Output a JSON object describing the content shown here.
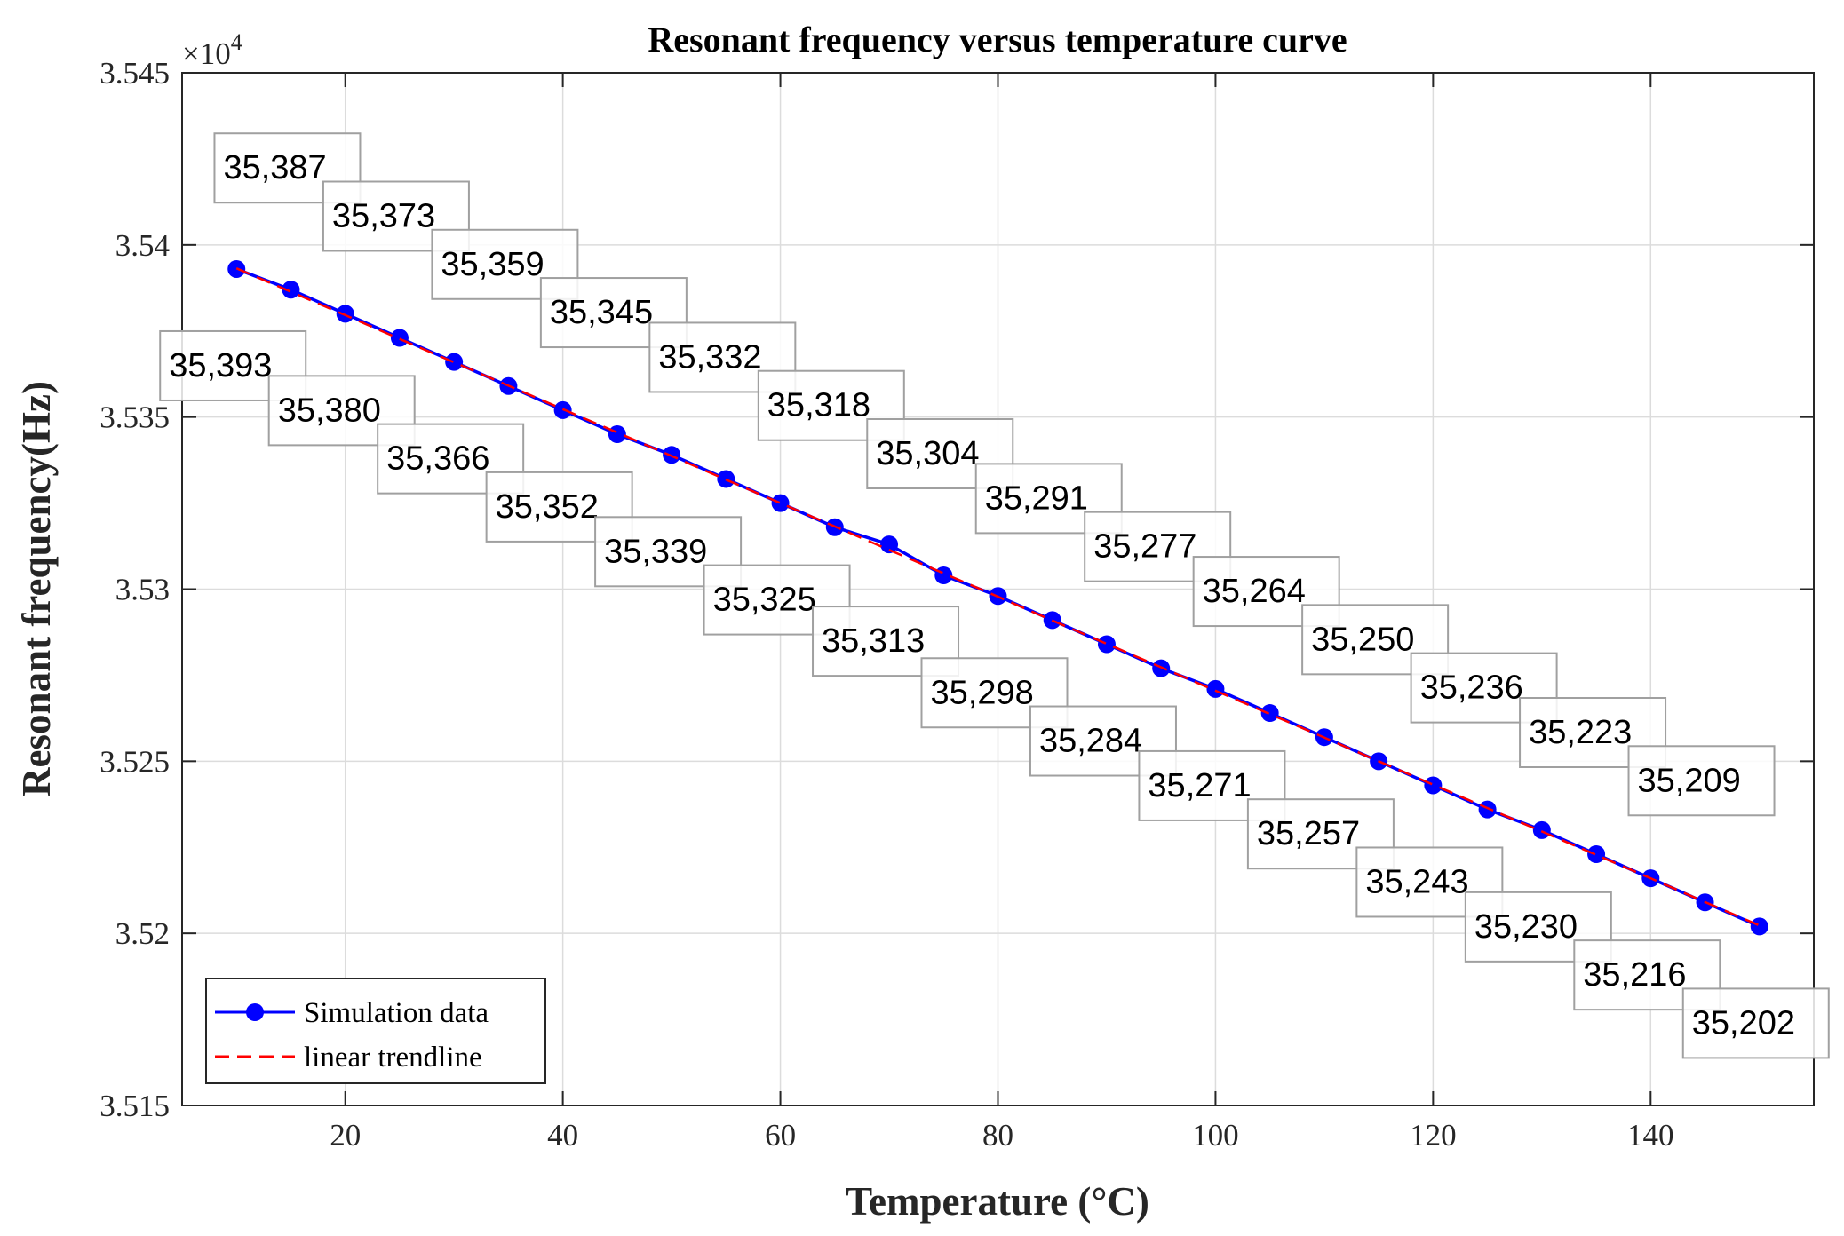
{
  "chart_data": {
    "type": "line",
    "title": "Resonant frequency versus temperature curve",
    "xlabel": "Temperature (°C)",
    "ylabel": "Resonant frequency(Hz)",
    "y_exponent_base": "×10",
    "y_exponent_power": "4",
    "xlim": [
      5,
      155
    ],
    "ylim": [
      35150,
      35450
    ],
    "x_ticks": [
      20,
      40,
      60,
      80,
      100,
      120,
      140
    ],
    "x_tick_labels": [
      "20",
      "40",
      "60",
      "80",
      "100",
      "120",
      "140"
    ],
    "y_ticks": [
      35150,
      35200,
      35250,
      35300,
      35350,
      35400,
      35450
    ],
    "y_tick_labels": [
      "3.515",
      "3.52",
      "3.525",
      "3.53",
      "3.535",
      "3.54",
      "3.545"
    ],
    "grid": true,
    "legend_position": "bottom-left",
    "x": [
      10,
      15,
      20,
      25,
      30,
      35,
      40,
      45,
      50,
      55,
      60,
      65,
      70,
      75,
      80,
      85,
      90,
      95,
      100,
      105,
      110,
      115,
      120,
      125,
      130,
      135,
      140,
      145,
      150
    ],
    "series": [
      {
        "name": "Simulation data",
        "color": "#0000ff",
        "style": "solid-markers",
        "values": [
          35393,
          35387,
          35380,
          35373,
          35366,
          35359,
          35352,
          35345,
          35339,
          35332,
          35325,
          35318,
          35313,
          35304,
          35298,
          35291,
          35284,
          35277,
          35271,
          35264,
          35257,
          35250,
          35243,
          35236,
          35230,
          35223,
          35216,
          35209,
          35202
        ]
      },
      {
        "name": "linear trendline",
        "color": "#ff0000",
        "style": "dashed",
        "values": [
          35393.2,
          35386.4,
          35379.6,
          35372.7,
          35365.9,
          35359.1,
          35352.3,
          35345.5,
          35338.7,
          35331.8,
          35325.0,
          35318.2,
          35311.4,
          35304.6,
          35297.8,
          35290.9,
          35284.1,
          35277.3,
          35270.5,
          35263.7,
          35256.9,
          35250.0,
          35243.2,
          35236.4,
          35229.6,
          35222.8,
          35216.0,
          35209.1,
          35202.3
        ]
      }
    ],
    "data_labels": [
      "35,393",
      "35,387",
      "35,380",
      "35,373",
      "35,366",
      "35,359",
      "35,352",
      "35,345",
      "35,339",
      "35,332",
      "35,325",
      "35,318",
      "35,313",
      "35,304",
      "35,298",
      "35,291",
      "35,284",
      "35,277",
      "35,271",
      "35,264",
      "35,257",
      "35,250",
      "35,243",
      "35,236",
      "35,230",
      "35,223",
      "35,216",
      "35,209",
      "35,202"
    ]
  }
}
